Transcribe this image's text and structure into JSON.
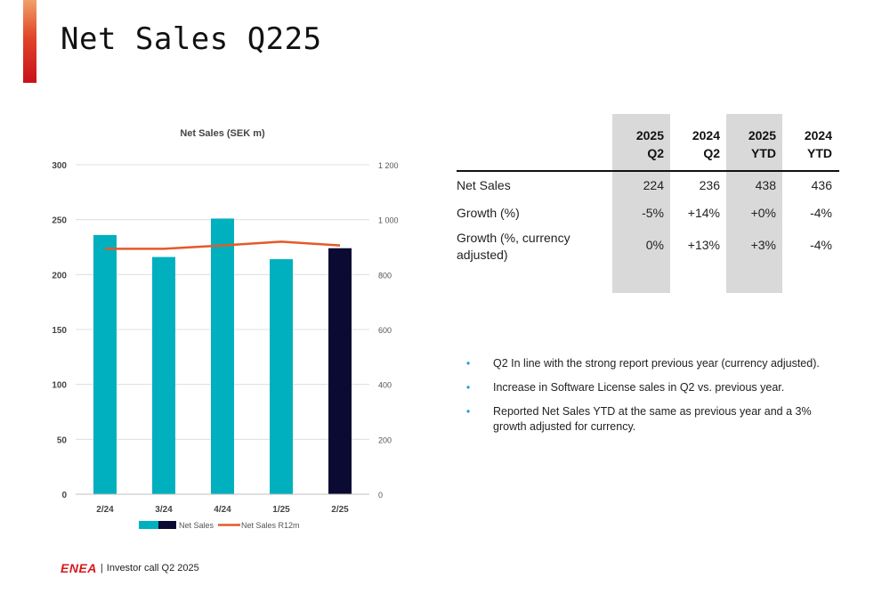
{
  "title": "Net Sales Q225",
  "chart_data": {
    "type": "bar",
    "title": "Net Sales (SEK m)",
    "categories": [
      "2/24",
      "3/24",
      "4/24",
      "1/25",
      "2/25"
    ],
    "series": [
      {
        "name": "Net Sales",
        "values": [
          236,
          216,
          251,
          214,
          224
        ],
        "colors": [
          "#00b0bf",
          "#00b0bf",
          "#00b0bf",
          "#00b0bf",
          "#0a0a33"
        ],
        "axis": "left"
      },
      {
        "name": "Net Sales R12m",
        "type": "line",
        "values": [
          894,
          894,
          906,
          920,
          906
        ],
        "color": "#e4592a",
        "axis": "right"
      }
    ],
    "ylim": [
      0,
      300
    ],
    "y_ticks": [
      "0",
      "50",
      "100",
      "150",
      "200",
      "250",
      "300"
    ],
    "y2lim": [
      0,
      1200
    ],
    "y2_ticks": [
      "0",
      "200",
      "400",
      "600",
      "800",
      "1 000",
      "1 200"
    ],
    "grid": true,
    "legend": "bottom"
  },
  "table": {
    "headers": [
      {
        "year": "2025",
        "period": "Q2"
      },
      {
        "year": "2024",
        "period": "Q2"
      },
      {
        "year": "2025",
        "period": "YTD"
      },
      {
        "year": "2024",
        "period": "YTD"
      }
    ],
    "rows": [
      {
        "label": "Net Sales",
        "values": [
          "224",
          "236",
          "438",
          "436"
        ]
      },
      {
        "label": "Growth (%)",
        "values": [
          "-5%",
          "+14%",
          "+0%",
          "-4%"
        ]
      },
      {
        "label_line1": "Growth (%, currency",
        "label_line2": "adjusted)",
        "values": [
          "0%",
          "+13%",
          "+3%",
          "-4%"
        ]
      }
    ]
  },
  "bullets": [
    "Q2 In line with the strong report previous year (currency adjusted).",
    "Increase in Software License sales in Q2 vs. previous year.",
    "Reported Net Sales YTD at the same as previous year and a 3% growth adjusted for currency."
  ],
  "footer": {
    "logo": "ENEA",
    "separator": "|",
    "text": "Investor call Q2 2025"
  }
}
